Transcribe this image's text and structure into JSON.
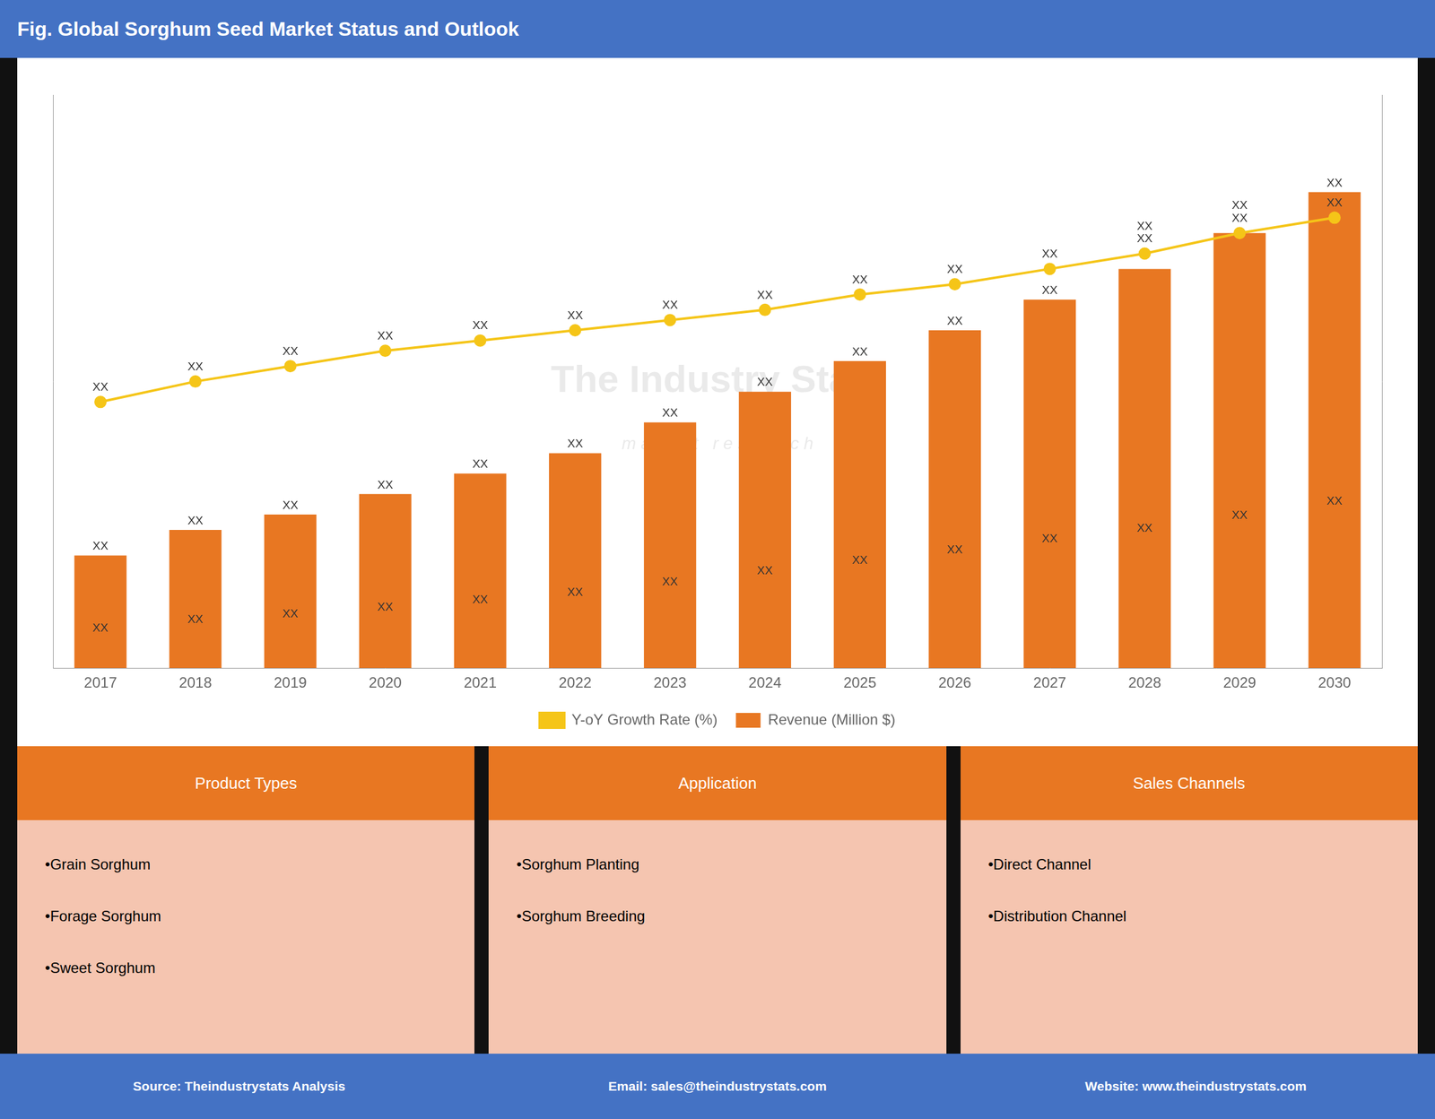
{
  "chart_data": {
    "type": "bar",
    "title": "Fig. Global Sorghum Seed Market Status and Outlook",
    "categories": [
      "2017",
      "2018",
      "2019",
      "2020",
      "2021",
      "2022",
      "2023",
      "2024",
      "2025",
      "2026",
      "2027",
      "2028",
      "2029",
      "2030"
    ],
    "series": [
      {
        "name": "Revenue (Million $)",
        "type": "bar",
        "color": "#E87722",
        "values": [
          0.22,
          0.27,
          0.3,
          0.34,
          0.38,
          0.42,
          0.48,
          0.54,
          0.6,
          0.66,
          0.72,
          0.78,
          0.85,
          0.93
        ],
        "value_labels": [
          "XX",
          "XX",
          "XX",
          "XX",
          "XX",
          "XX",
          "XX",
          "XX",
          "XX",
          "XX",
          "XX",
          "XX",
          "XX",
          "XX"
        ]
      },
      {
        "name": "Y-oY Growth Rate (%)",
        "type": "line",
        "axis": "y2",
        "color": "#F5C518",
        "marker": "circle",
        "values": [
          0.52,
          0.56,
          0.59,
          0.62,
          0.64,
          0.66,
          0.68,
          0.7,
          0.73,
          0.75,
          0.78,
          0.81,
          0.85,
          0.88
        ],
        "value_labels": [
          "XX",
          "XX",
          "XX",
          "XX",
          "XX",
          "XX",
          "XX",
          "XX",
          "XX",
          "XX",
          "XX",
          "XX",
          "XX",
          "XX"
        ]
      }
    ],
    "ylim": [
      0,
      1.12
    ],
    "y2lim": [
      0,
      1.12
    ],
    "yticks": [],
    "y2ticks": [],
    "grid": false,
    "tick_labels": "x",
    "legend": "bottom",
    "data_labels": true,
    "annotations": [
      "The Industry Stats",
      "m a r k e t   r e s e a r c h"
    ]
  },
  "panels": [
    {
      "title": "Product Types",
      "items": [
        "•Grain Sorghum",
        "•Forage Sorghum",
        "•Sweet Sorghum"
      ]
    },
    {
      "title": "Application",
      "items": [
        "•Sorghum Planting",
        "•Sorghum Breeding"
      ]
    },
    {
      "title": "Sales Channels",
      "items": [
        "•Direct Channel",
        "•Distribution Channel"
      ]
    }
  ],
  "footer": [
    "Source: Theindustrystats Analysis",
    "Email: sales@theindustrystats.com",
    "Website: www.theindustrystats.com"
  ]
}
